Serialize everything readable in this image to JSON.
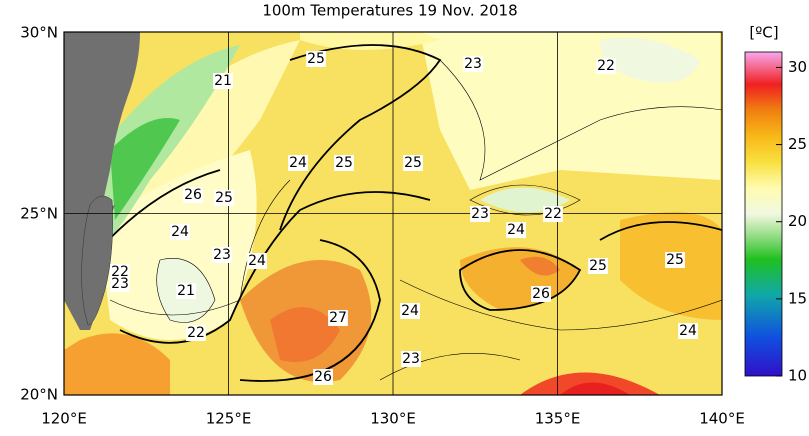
{
  "title": "100m Temperatures  19 Nov. 2018",
  "lon_labels": [
    "120°E",
    "125°E",
    "130°E",
    "135°E",
    "140°E"
  ],
  "lat_labels": [
    "30°N",
    "25°N",
    "20°N"
  ],
  "colorbar": {
    "unit": "[ºC]",
    "range": [
      10,
      31
    ],
    "ticks": [
      10,
      15,
      20,
      25,
      30
    ]
  },
  "contour_labels": [
    25,
    23,
    22,
    21,
    24,
    25,
    25,
    26,
    25,
    23,
    22,
    24,
    24,
    23,
    24,
    25,
    25,
    22,
    23,
    26,
    21,
    27,
    24,
    24,
    22,
    23,
    26
  ]
}
